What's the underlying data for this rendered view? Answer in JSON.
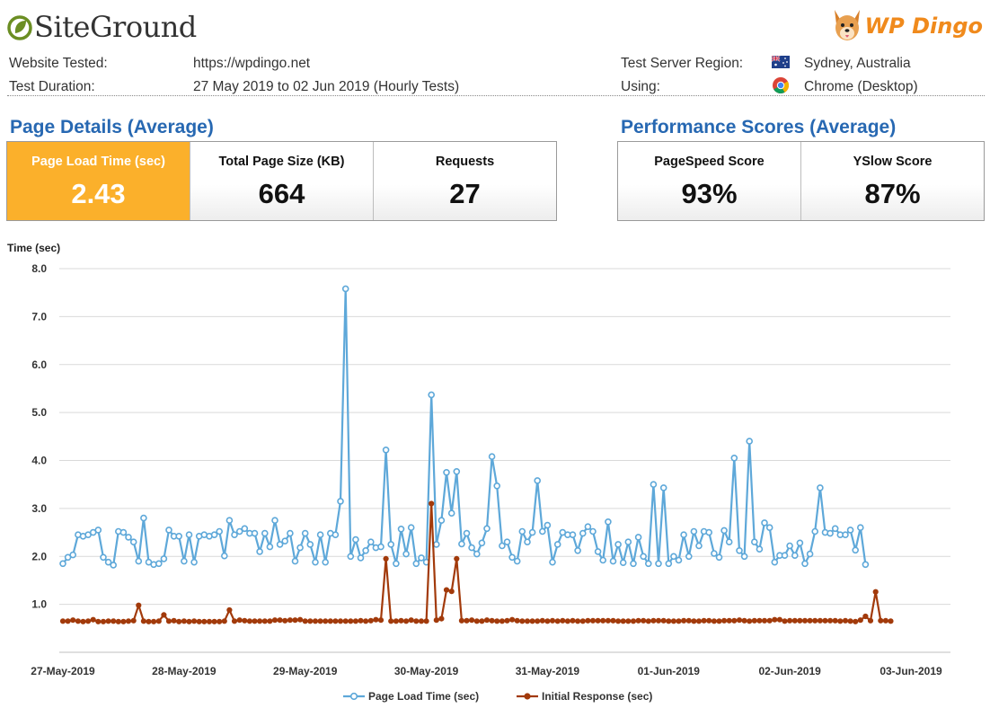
{
  "header": {
    "brand": "SiteGround",
    "partner_brand": "WP Dingo",
    "rows": [
      {
        "label": "Website Tested:",
        "value": "https://wpdingo.net"
      },
      {
        "label": "Test Duration:",
        "value": "27 May 2019 to 02 Jun 2019 (Hourly Tests)"
      }
    ],
    "right_rows": [
      {
        "label": "Test Server Region:",
        "value": "Sydney, Australia",
        "icon": "australia-flag-icon"
      },
      {
        "label": "Using:",
        "value": "Chrome (Desktop)",
        "icon": "chrome-icon"
      }
    ]
  },
  "page_details": {
    "title": "Page Details (Average)",
    "cards": [
      {
        "label": "Page Load Time (sec)",
        "value": "2.43"
      },
      {
        "label": "Total Page Size (KB)",
        "value": "664"
      },
      {
        "label": "Requests",
        "value": "27"
      }
    ]
  },
  "performance": {
    "title": "Performance Scores (Average)",
    "cards": [
      {
        "label": "PageSpeed Score",
        "value": "93%"
      },
      {
        "label": "YSlow Score",
        "value": "87%"
      }
    ]
  },
  "colors": {
    "accent": "#fbb02b",
    "title_blue": "#2768b2",
    "series_load": "#5ea8d9",
    "series_response": "#a23a0b"
  },
  "chart_data": {
    "type": "line",
    "ylabel": "Time (sec)",
    "ylim": [
      0,
      8
    ],
    "yticks": [
      "8.0",
      "7.0",
      "6.0",
      "5.0",
      "4.0",
      "3.0",
      "2.0",
      "1.0"
    ],
    "xlim": [
      0,
      7
    ],
    "xticks": [
      "27-May-2019",
      "28-May-2019",
      "29-May-2019",
      "30-May-2019",
      "31-May-2019",
      "01-Jun-2019",
      "02-Jun-2019",
      "03-Jun-2019"
    ],
    "grid": true,
    "legend_position": "bottom",
    "sample_interval_hours": 1,
    "series": [
      {
        "name": "Page Load Time (sec)",
        "values": [
          1.85,
          1.98,
          2.03,
          2.45,
          2.42,
          2.45,
          2.5,
          2.55,
          1.98,
          1.88,
          1.82,
          2.52,
          2.5,
          2.4,
          2.3,
          1.9,
          2.8,
          1.88,
          1.83,
          1.85,
          1.95,
          2.55,
          2.42,
          2.42,
          1.9,
          2.45,
          1.88,
          2.42,
          2.45,
          2.42,
          2.45,
          2.52,
          2.01,
          2.75,
          2.45,
          2.52,
          2.58,
          2.48,
          2.48,
          2.1,
          2.48,
          2.2,
          2.75,
          2.25,
          2.32,
          2.48,
          1.9,
          2.18,
          2.48,
          2.25,
          1.88,
          2.45,
          1.88,
          2.48,
          2.45,
          3.15,
          7.58,
          2.0,
          2.35,
          1.97,
          2.12,
          2.3,
          2.18,
          2.2,
          4.22,
          2.25,
          1.85,
          2.57,
          2.05,
          2.6,
          1.85,
          1.97,
          1.88,
          5.37,
          2.25,
          2.75,
          3.75,
          2.9,
          3.77,
          2.26,
          2.48,
          2.18,
          2.05,
          2.28,
          2.58,
          4.08,
          3.47,
          2.22,
          2.3,
          1.98,
          1.9,
          2.52,
          2.3,
          2.5,
          3.58,
          2.52,
          2.65,
          1.88,
          2.25,
          2.5,
          2.45,
          2.45,
          2.12,
          2.48,
          2.62,
          2.52,
          2.1,
          1.92,
          2.72,
          1.9,
          2.25,
          1.87,
          2.3,
          1.85,
          2.4,
          2.0,
          1.85,
          3.5,
          1.85,
          3.43,
          1.85,
          2.0,
          1.92,
          2.45,
          2.0,
          2.52,
          2.22,
          2.52,
          2.5,
          2.06,
          1.98,
          2.54,
          2.3,
          4.05,
          2.12,
          2.0,
          4.4,
          2.3,
          2.15,
          2.7,
          2.6,
          1.88,
          2.02,
          2.02,
          2.22,
          2.02,
          2.28,
          1.85,
          2.05,
          2.52,
          3.43,
          2.5,
          2.48,
          2.58,
          2.45,
          2.45,
          2.55,
          2.13,
          2.6,
          1.83
        ]
      },
      {
        "name": "Initial Response (sec)",
        "values": [
          0.65,
          0.65,
          0.67,
          0.65,
          0.64,
          0.65,
          0.68,
          0.64,
          0.64,
          0.65,
          0.65,
          0.64,
          0.64,
          0.65,
          0.66,
          0.98,
          0.65,
          0.64,
          0.64,
          0.65,
          0.78,
          0.65,
          0.66,
          0.64,
          0.65,
          0.64,
          0.65,
          0.64,
          0.64,
          0.64,
          0.64,
          0.64,
          0.65,
          0.88,
          0.65,
          0.67,
          0.66,
          0.65,
          0.65,
          0.65,
          0.65,
          0.65,
          0.67,
          0.67,
          0.66,
          0.67,
          0.67,
          0.68,
          0.65,
          0.65,
          0.65,
          0.65,
          0.65,
          0.65,
          0.65,
          0.65,
          0.65,
          0.65,
          0.65,
          0.66,
          0.65,
          0.66,
          0.68,
          0.67,
          1.95,
          0.65,
          0.65,
          0.66,
          0.65,
          0.67,
          0.65,
          0.65,
          0.65,
          3.1,
          0.67,
          0.7,
          1.3,
          1.27,
          1.95,
          0.66,
          0.66,
          0.67,
          0.65,
          0.65,
          0.67,
          0.66,
          0.65,
          0.65,
          0.66,
          0.68,
          0.66,
          0.65,
          0.65,
          0.65,
          0.65,
          0.66,
          0.65,
          0.66,
          0.65,
          0.66,
          0.65,
          0.66,
          0.65,
          0.65,
          0.66,
          0.66,
          0.66,
          0.66,
          0.66,
          0.66,
          0.65,
          0.65,
          0.65,
          0.65,
          0.66,
          0.66,
          0.65,
          0.66,
          0.66,
          0.66,
          0.65,
          0.65,
          0.65,
          0.66,
          0.66,
          0.65,
          0.65,
          0.66,
          0.66,
          0.65,
          0.65,
          0.66,
          0.66,
          0.66,
          0.67,
          0.66,
          0.65,
          0.66,
          0.66,
          0.66,
          0.66,
          0.68,
          0.68,
          0.65,
          0.66,
          0.66,
          0.66,
          0.66,
          0.66,
          0.66,
          0.66,
          0.66,
          0.66,
          0.66,
          0.65,
          0.66,
          0.65,
          0.64,
          0.67,
          0.75,
          0.66,
          1.26,
          0.66,
          0.66,
          0.65
        ]
      }
    ]
  }
}
